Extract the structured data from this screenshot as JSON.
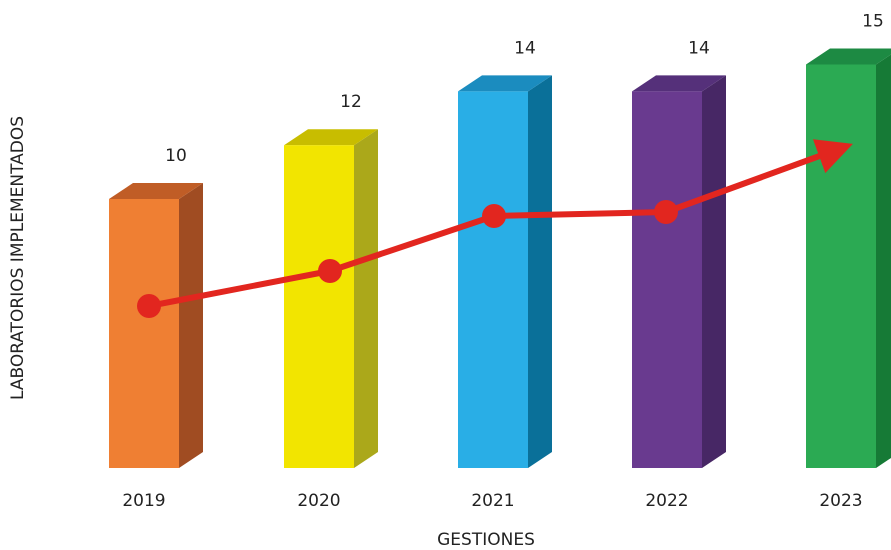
{
  "chart_data": {
    "type": "bar",
    "style": "3d-columns-with-trend-line",
    "categories": [
      "2019",
      "2020",
      "2021",
      "2022",
      "2023"
    ],
    "series": [
      {
        "values": [
          10,
          12,
          14,
          14,
          15
        ]
      }
    ],
    "data_labels": [
      "10",
      "12",
      "14",
      "14",
      "15"
    ],
    "xlabel": "GESTIONES",
    "ylabel": "LABORATORIOS IMPLEMENTADOS",
    "ylim": [
      0,
      15
    ],
    "grid": false,
    "legend": "none",
    "bar_colors": {
      "front": [
        "#ef7f33",
        "#f2e500",
        "#29aee6",
        "#693a8f",
        "#2baa53"
      ],
      "side": [
        "#a04c22",
        "#aba81a",
        "#0a7099",
        "#472765",
        "#167a36"
      ],
      "top": [
        "#c05d26",
        "#c8bd00",
        "#1b8cbf",
        "#55307a",
        "#1d8a43"
      ]
    },
    "trend_line": {
      "color": "#e2261f",
      "arrow_end": true
    }
  }
}
